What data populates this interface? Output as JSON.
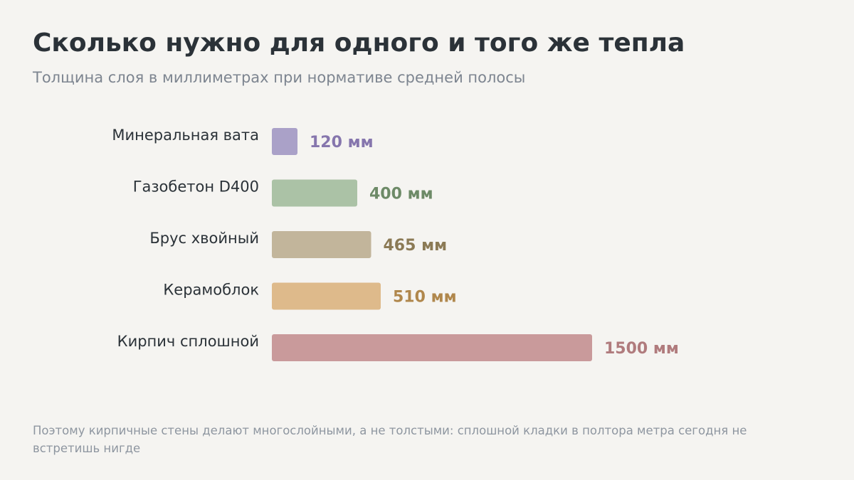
{
  "chart_data": {
    "type": "bar",
    "orientation": "horizontal",
    "title": "Сколько нужно для одного и того же тепла",
    "subtitle": "Толщина слоя в миллиметрах при нормативе средней полосы",
    "unit": "мм",
    "categories": [
      "Минеральная вата",
      "Газобетон D400",
      "Брус хвойный",
      "Керамоблок",
      "Кирпич сплошной"
    ],
    "values": [
      120,
      400,
      465,
      510,
      1500
    ],
    "value_labels": [
      "120 мм",
      "400 мм",
      "465 мм",
      "510 мм",
      "1500 мм"
    ],
    "bar_colors": [
      "#aaa1c8",
      "#abc2a6",
      "#c2b59b",
      "#deba8b",
      "#c99a9b"
    ],
    "label_colors": [
      "#8676ad",
      "#6d8a67",
      "#8b7a55",
      "#b0874c",
      "#b07b7d"
    ],
    "xlim": [
      0,
      1500
    ],
    "grid": false,
    "legend": "none"
  },
  "footnote": "Поэтому кирпичные стены делают многослойными, а не толстыми: сплошной кладки в полтора метра сегодня не встретишь нигде"
}
